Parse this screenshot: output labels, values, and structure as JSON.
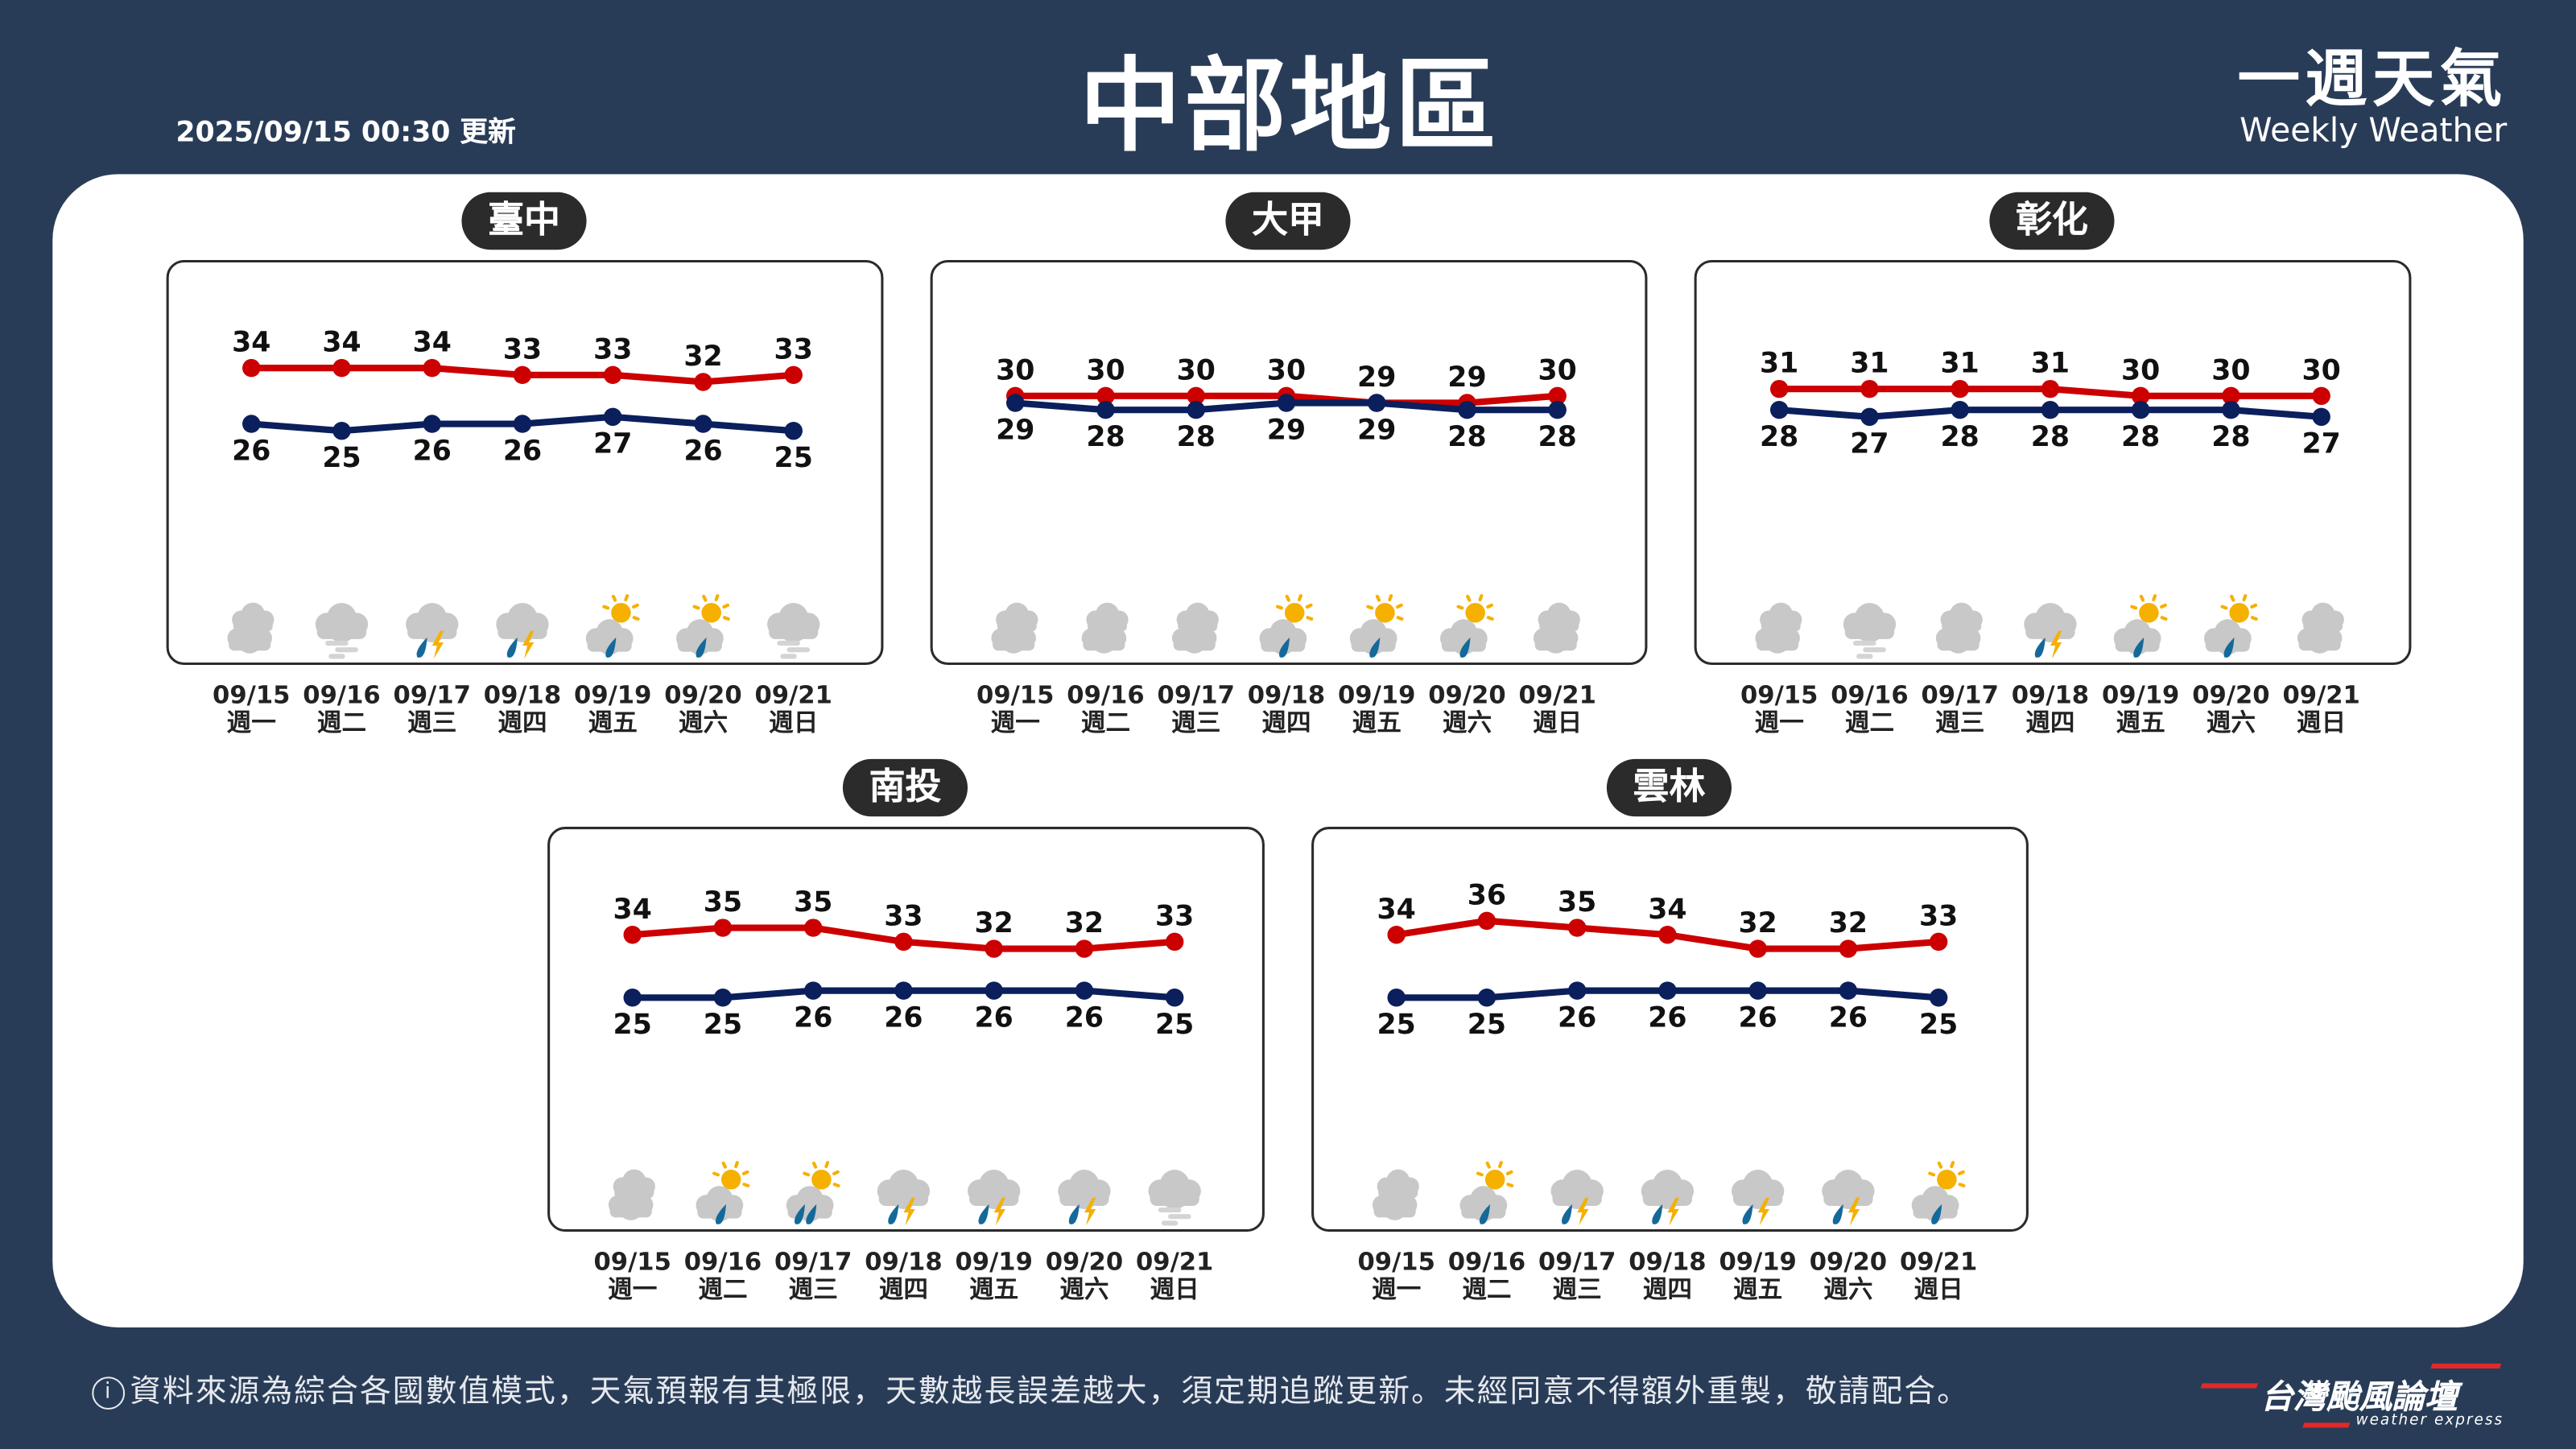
{
  "header": {
    "updated": "2025/09/15 00:30 更新",
    "title": "中部地區",
    "brand_zh": "一週天氣",
    "brand_en": "Weekly Weather"
  },
  "colors": {
    "background": "#293c57",
    "high_line": "#cc0000",
    "low_line": "#0b1f5c",
    "cloud": "#c8c8c8",
    "sun": "#f5b000",
    "rain": "#14699a"
  },
  "footer": {
    "info_icon": "info-circle-icon",
    "notice": "資料來源為綜合各國數值模式，天氣預報有其極限，天數越長誤差越大，須定期追蹤更新。未經同意不得額外重製，敬請配合。",
    "logo_zh": "台灣颱風論壇",
    "logo_en": "weather express"
  },
  "chart_data": [
    {
      "type": "line",
      "title": "臺中",
      "categories": [
        "09/15",
        "09/16",
        "09/17",
        "09/18",
        "09/19",
        "09/20",
        "09/21"
      ],
      "weekdays": [
        "週一",
        "週二",
        "週三",
        "週四",
        "週五",
        "週六",
        "週日"
      ],
      "series": [
        {
          "values": [
            34,
            34,
            34,
            33,
            33,
            32,
            33
          ],
          "color": "#cc0000"
        },
        {
          "values": [
            26,
            25,
            26,
            26,
            27,
            26,
            25
          ],
          "color": "#0b1f5c"
        }
      ],
      "icons": [
        "cloudy",
        "fog",
        "thunder-rain",
        "thunder-rain",
        "partly-sunny-rain",
        "partly-sunny-rain",
        "fog"
      ]
    },
    {
      "type": "line",
      "title": "大甲",
      "categories": [
        "09/15",
        "09/16",
        "09/17",
        "09/18",
        "09/19",
        "09/20",
        "09/21"
      ],
      "weekdays": [
        "週一",
        "週二",
        "週三",
        "週四",
        "週五",
        "週六",
        "週日"
      ],
      "series": [
        {
          "values": [
            30,
            30,
            30,
            30,
            29,
            29,
            30
          ],
          "color": "#cc0000"
        },
        {
          "values": [
            29,
            28,
            28,
            29,
            29,
            28,
            28
          ],
          "color": "#0b1f5c"
        }
      ],
      "icons": [
        "cloudy",
        "cloudy",
        "cloudy",
        "partly-sunny-rain",
        "partly-sunny-rain",
        "partly-sunny-rain",
        "cloudy"
      ]
    },
    {
      "type": "line",
      "title": "彰化",
      "categories": [
        "09/15",
        "09/16",
        "09/17",
        "09/18",
        "09/19",
        "09/20",
        "09/21"
      ],
      "weekdays": [
        "週一",
        "週二",
        "週三",
        "週四",
        "週五",
        "週六",
        "週日"
      ],
      "series": [
        {
          "values": [
            31,
            31,
            31,
            31,
            30,
            30,
            30
          ],
          "color": "#cc0000"
        },
        {
          "values": [
            28,
            27,
            28,
            28,
            28,
            28,
            27
          ],
          "color": "#0b1f5c"
        }
      ],
      "icons": [
        "cloudy",
        "fog",
        "cloudy",
        "thunder-rain",
        "partly-sunny-rain",
        "partly-sunny-rain",
        "cloudy"
      ]
    },
    {
      "type": "line",
      "title": "南投",
      "categories": [
        "09/15",
        "09/16",
        "09/17",
        "09/18",
        "09/19",
        "09/20",
        "09/21"
      ],
      "weekdays": [
        "週一",
        "週二",
        "週三",
        "週四",
        "週五",
        "週六",
        "週日"
      ],
      "series": [
        {
          "values": [
            34,
            35,
            35,
            33,
            32,
            32,
            33
          ],
          "color": "#cc0000"
        },
        {
          "values": [
            25,
            25,
            26,
            26,
            26,
            26,
            25
          ],
          "color": "#0b1f5c"
        }
      ],
      "icons": [
        "cloudy",
        "partly-sunny-rain",
        "partly-sunny-heavy-rain",
        "thunder-rain",
        "thunder-rain",
        "thunder-rain",
        "fog"
      ]
    },
    {
      "type": "line",
      "title": "雲林",
      "categories": [
        "09/15",
        "09/16",
        "09/17",
        "09/18",
        "09/19",
        "09/20",
        "09/21"
      ],
      "weekdays": [
        "週一",
        "週二",
        "週三",
        "週四",
        "週五",
        "週六",
        "週日"
      ],
      "series": [
        {
          "values": [
            34,
            36,
            35,
            34,
            32,
            32,
            33
          ],
          "color": "#cc0000"
        },
        {
          "values": [
            25,
            25,
            26,
            26,
            26,
            26,
            25
          ],
          "color": "#0b1f5c"
        }
      ],
      "icons": [
        "cloudy",
        "partly-sunny-rain",
        "thunder-rain",
        "thunder-rain",
        "thunder-rain",
        "thunder-rain",
        "partly-sunny-rain"
      ]
    }
  ]
}
